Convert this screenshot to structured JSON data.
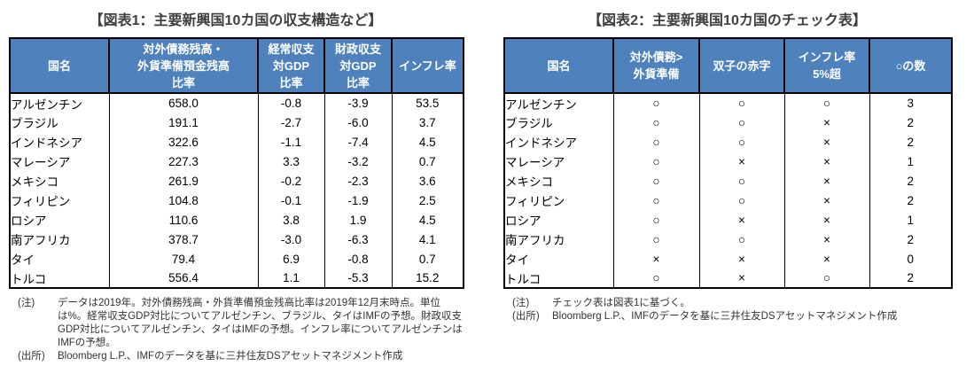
{
  "colors": {
    "header_bg": "#4f81bd",
    "header_text": "#ffffff",
    "negative_value": "#c00000",
    "border": "#000000",
    "title_text": "#3f3f3f"
  },
  "fig1": {
    "title": "【図表1：主要新興国10カ国の収支構造など】",
    "columns": [
      "国名",
      "対外債務残高・\n外貨準備預金残高\n比率",
      "経常収支\n対GDP\n比率",
      "財政収支\n対GDP\n比率",
      "インフレ率"
    ],
    "rows": [
      {
        "name": "アルゼンチン",
        "values": [
          "658.0",
          "-0.8",
          "-3.9",
          "53.5"
        ]
      },
      {
        "name": "ブラジル",
        "values": [
          "191.1",
          "-2.7",
          "-6.0",
          "3.7"
        ]
      },
      {
        "name": "インドネシア",
        "values": [
          "322.6",
          "-1.1",
          "-7.4",
          "4.5"
        ]
      },
      {
        "name": "マレーシア",
        "values": [
          "227.3",
          "3.3",
          "-3.2",
          "0.7"
        ]
      },
      {
        "name": "メキシコ",
        "values": [
          "261.9",
          "-0.2",
          "-2.3",
          "3.6"
        ]
      },
      {
        "name": "フィリピン",
        "values": [
          "104.8",
          "-0.1",
          "-1.9",
          "2.5"
        ]
      },
      {
        "name": "ロシア",
        "values": [
          "110.6",
          "3.8",
          "1.9",
          "4.5"
        ]
      },
      {
        "name": "南アフリカ",
        "values": [
          "378.7",
          "-3.0",
          "-6.3",
          "4.1"
        ]
      },
      {
        "name": "タイ",
        "values": [
          "79.4",
          "6.9",
          "-0.8",
          "0.7"
        ]
      },
      {
        "name": "トルコ",
        "values": [
          "556.4",
          "1.1",
          "-5.3",
          "15.2"
        ]
      }
    ],
    "note_label": "(注)",
    "note": "データは2019年。対外債務残高・外貨準備預金残高比率は2019年12月末時点。単位は%。経常収支GDP対比についてアルゼンチン、ブラジル、タイはIMFの予想。財政収支GDP対比についてアルゼンチン、タイはIMFの予想。インフレ率についてアルゼンチンはIMFの予想。",
    "source_label": "(出所)",
    "source": "Bloomberg L.P.、IMFのデータを基に三井住友DSアセットマネジメント作成"
  },
  "fig2": {
    "title": "【図表2：主要新興国10カ国のチェック表】",
    "columns": [
      "国名",
      "対外債務>\n外貨準備",
      "双子の赤字",
      "インフレ率\n5%超",
      "○の数"
    ],
    "rows": [
      {
        "name": "アルゼンチン",
        "values": [
          "○",
          "○",
          "○",
          "3"
        ]
      },
      {
        "name": "ブラジル",
        "values": [
          "○",
          "○",
          "×",
          "2"
        ]
      },
      {
        "name": "インドネシア",
        "values": [
          "○",
          "○",
          "×",
          "2"
        ]
      },
      {
        "name": "マレーシア",
        "values": [
          "○",
          "×",
          "×",
          "1"
        ]
      },
      {
        "name": "メキシコ",
        "values": [
          "○",
          "○",
          "×",
          "2"
        ]
      },
      {
        "name": "フィリピン",
        "values": [
          "○",
          "○",
          "×",
          "2"
        ]
      },
      {
        "name": "ロシア",
        "values": [
          "○",
          "×",
          "×",
          "1"
        ]
      },
      {
        "name": "南アフリカ",
        "values": [
          "○",
          "○",
          "×",
          "2"
        ]
      },
      {
        "name": "タイ",
        "values": [
          "×",
          "×",
          "×",
          "0"
        ]
      },
      {
        "name": "トルコ",
        "values": [
          "○",
          "×",
          "○",
          "2"
        ]
      }
    ],
    "note_label": "(注)",
    "note": "チェック表は図表1に基づく。",
    "source_label": "(出所)",
    "source": "Bloomberg L.P.、IMFのデータを基に三井住友DSアセットマネジメント作成"
  }
}
